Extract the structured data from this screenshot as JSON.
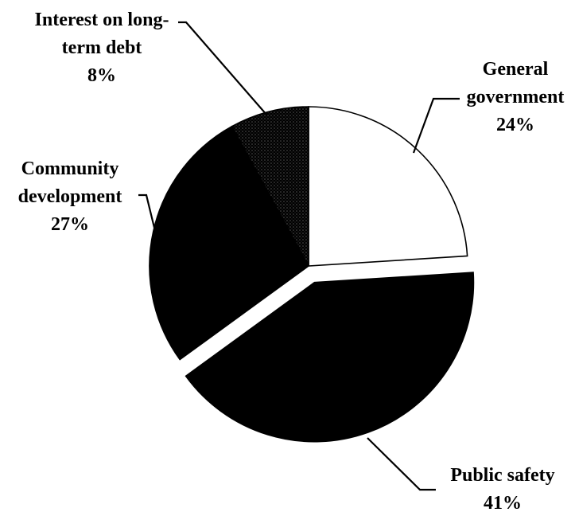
{
  "chart_data": {
    "type": "pie",
    "title": "",
    "slices": [
      {
        "label_lines": [
          "General",
          "government"
        ],
        "pct_label": "24%",
        "value": 24,
        "color": "#ffffff",
        "exploded": false
      },
      {
        "label_lines": [
          "Public safety"
        ],
        "pct_label": "41%",
        "value": 41,
        "color": "#000000",
        "exploded": true
      },
      {
        "label_lines": [
          "Community",
          "development"
        ],
        "pct_label": "27%",
        "value": 27,
        "color": "#000000",
        "exploded": false
      },
      {
        "label_lines": [
          "Interest on long-",
          "term debt"
        ],
        "pct_label": "8%",
        "value": 8,
        "color": "#1a1a1a",
        "pattern": "dots",
        "exploded": false
      }
    ]
  }
}
